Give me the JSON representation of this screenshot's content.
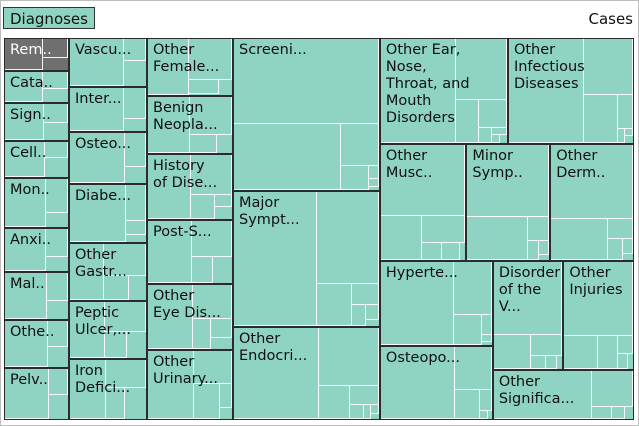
{
  "header": {
    "breadcrumb": "Diagnoses",
    "size_label": "Cases"
  },
  "colors": {
    "cell_fill": "#8fd3c2",
    "selected_fill": "#6f6f6f",
    "border": "#2b2b2b",
    "inner_lines": "#ffffff"
  },
  "chart_data": {
    "type": "treemap",
    "title": "Diagnoses",
    "size_measure": "Cases",
    "selected": "Rem..",
    "columns": [
      {
        "cells": [
          {
            "label": "Rem..",
            "weight": 30
          },
          {
            "label": "Cata..",
            "weight": 30
          },
          {
            "label": "Sign..",
            "weight": 34
          },
          {
            "label": "Cell..",
            "weight": 34
          },
          {
            "label": "Mon..",
            "weight": 46
          },
          {
            "label": "Anxi..",
            "weight": 40
          },
          {
            "label": "Mal..",
            "weight": 44
          },
          {
            "label": "Othe..",
            "weight": 44
          },
          {
            "label": "Pelv..",
            "weight": 48
          }
        ]
      },
      {
        "cells": [
          {
            "label": "Vascu...",
            "weight": 46
          },
          {
            "label": "Inter...",
            "weight": 42
          },
          {
            "label": "Osteo...",
            "weight": 49
          },
          {
            "label": "Diabe...",
            "weight": 56
          },
          {
            "label": "Other\nGastr...",
            "weight": 54
          },
          {
            "label": "Peptic\nUlcer,...",
            "weight": 55
          },
          {
            "label": "Iron\nDefici...",
            "weight": 57
          }
        ]
      },
      {
        "cells": [
          {
            "label": "Other\nFemale...",
            "weight": 56
          },
          {
            "label": "Benign\nNeopla...",
            "weight": 57
          },
          {
            "label": "History\nof Dise...",
            "weight": 64
          },
          {
            "label": "Post-S...",
            "weight": 63
          },
          {
            "label": "Other\nEye Dis...",
            "weight": 64
          },
          {
            "label": "Other\nUrinary...",
            "weight": 68
          }
        ]
      }
    ],
    "rest": [
      {
        "label": "Other\nSignifica...",
        "weight": 67
      },
      {
        "label": "Disorders\nof the V...",
        "weight": 74
      },
      {
        "label": "Other\nInjuries",
        "weight": 74
      },
      {
        "label": "Osteopo...",
        "weight": 80
      },
      {
        "label": "Hyperte...",
        "weight": 92
      },
      {
        "label": "Minor\nSymp..",
        "weight": 93
      },
      {
        "label": "Other\nDerm..",
        "weight": 93
      },
      {
        "label": "Other\nMusc..",
        "weight": 96
      },
      {
        "label": "Other\nEndocri...",
        "weight": 131
      },
      {
        "label": "Other\nInfectious\nDiseases",
        "weight": 128
      },
      {
        "label": "Other Ear,\nNose,\nThroat, and\nMouth\nDisorders",
        "weight": 130
      },
      {
        "label": "Major\nSympt...",
        "weight": 190
      },
      {
        "label": "Screeni...",
        "weight": 215
      }
    ]
  }
}
